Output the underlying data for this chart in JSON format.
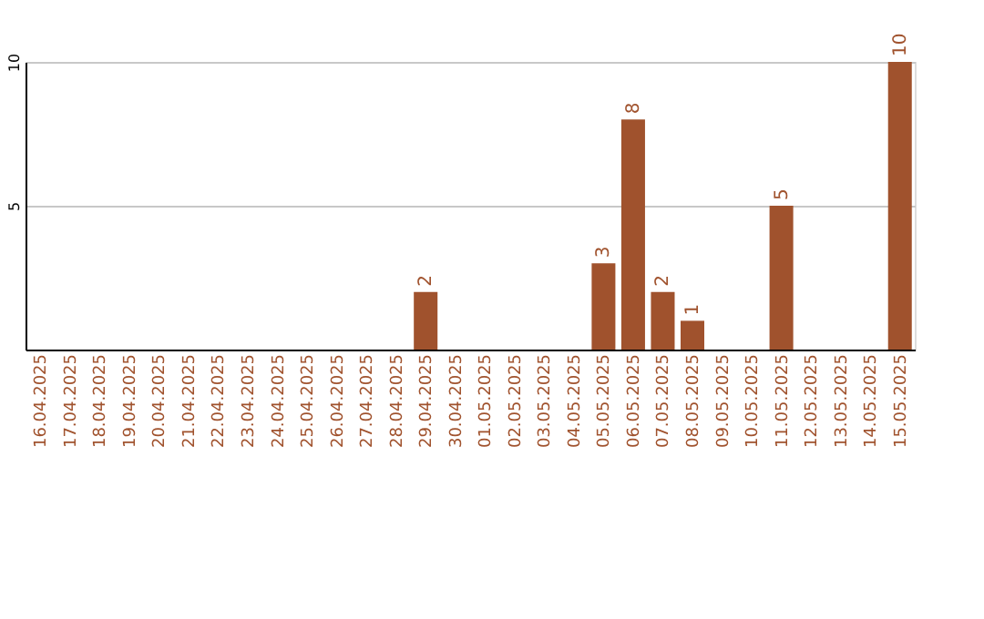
{
  "chart_data": {
    "type": "bar",
    "categories": [
      "16.04.2025",
      "17.04.2025",
      "18.04.2025",
      "19.04.2025",
      "20.04.2025",
      "21.04.2025",
      "22.04.2025",
      "23.04.2025",
      "24.04.2025",
      "25.04.2025",
      "26.04.2025",
      "27.04.2025",
      "28.04.2025",
      "29.04.2025",
      "30.04.2025",
      "01.05.2025",
      "02.05.2025",
      "03.05.2025",
      "04.05.2025",
      "05.05.2025",
      "06.05.2025",
      "07.05.2025",
      "08.05.2025",
      "09.05.2025",
      "10.05.2025",
      "11.05.2025",
      "12.05.2025",
      "13.05.2025",
      "14.05.2025",
      "15.05.2025"
    ],
    "values": [
      0,
      0,
      0,
      0,
      0,
      0,
      0,
      0,
      0,
      0,
      0,
      0,
      0,
      2,
      0,
      0,
      0,
      0,
      0,
      3,
      8,
      2,
      1,
      0,
      0,
      5,
      0,
      0,
      0,
      10
    ],
    "value_labels": [
      null,
      null,
      null,
      null,
      null,
      null,
      null,
      null,
      null,
      null,
      null,
      null,
      null,
      "2",
      null,
      null,
      null,
      null,
      null,
      "3",
      "8",
      "2",
      "1",
      null,
      null,
      "5",
      null,
      null,
      null,
      "10"
    ],
    "color": "#a0522d",
    "ylim": [
      0,
      10
    ],
    "yticks": [
      5,
      10
    ],
    "grid": "y"
  }
}
